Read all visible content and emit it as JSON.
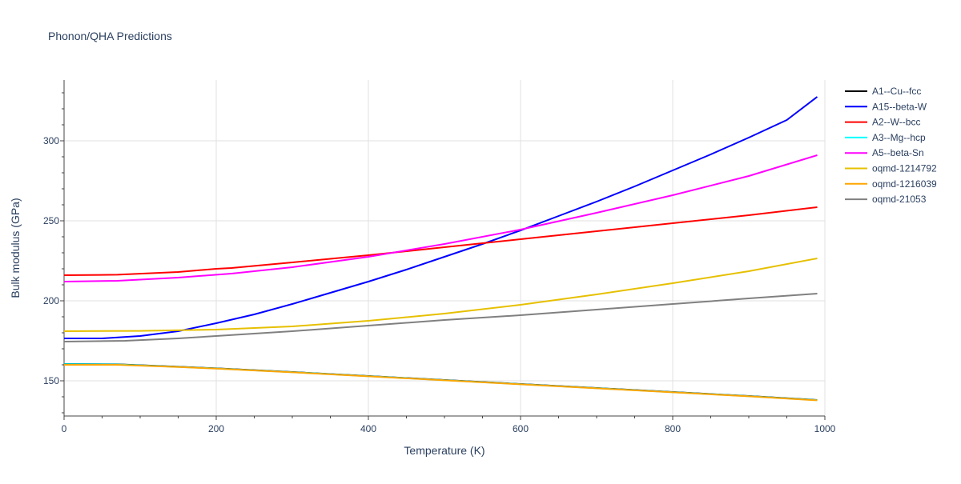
{
  "chart_data": {
    "type": "line",
    "title": "Phonon/QHA Predictions",
    "xlabel": "Temperature (K)",
    "ylabel": "Bulk modulus (GPa)",
    "xlim": [
      0,
      1000
    ],
    "ylim": [
      128,
      338
    ],
    "x_ticks": [
      0,
      200,
      400,
      600,
      800,
      1000
    ],
    "y_ticks": [
      150,
      200,
      250,
      300
    ],
    "grid": true,
    "legend_position": "top-right",
    "series": [
      {
        "name": "A1--Cu--fcc",
        "color": "#000000",
        "points": [
          [
            0,
            160.5
          ],
          [
            70,
            160.3
          ],
          [
            150,
            158.8
          ],
          [
            200,
            157.8
          ],
          [
            300,
            155.5
          ],
          [
            400,
            153
          ],
          [
            500,
            150.5
          ],
          [
            600,
            148
          ],
          [
            700,
            145.5
          ],
          [
            800,
            143
          ],
          [
            900,
            140.5
          ],
          [
            990,
            138
          ]
        ]
      },
      {
        "name": "A15--beta-W",
        "color": "#0000ff",
        "points": [
          [
            0,
            176.5
          ],
          [
            50,
            176.5
          ],
          [
            100,
            178
          ],
          [
            150,
            181
          ],
          [
            200,
            186
          ],
          [
            250,
            191.5
          ],
          [
            300,
            198
          ],
          [
            350,
            205
          ],
          [
            400,
            212
          ],
          [
            450,
            219.5
          ],
          [
            500,
            227.5
          ],
          [
            550,
            235.5
          ],
          [
            600,
            244
          ],
          [
            650,
            253
          ],
          [
            700,
            262
          ],
          [
            750,
            271.5
          ],
          [
            800,
            281.5
          ],
          [
            850,
            291.5
          ],
          [
            900,
            302
          ],
          [
            950,
            313
          ],
          [
            990,
            327.5
          ]
        ]
      },
      {
        "name": "A2--W--bcc",
        "color": "#ff0000",
        "points": [
          [
            0,
            216
          ],
          [
            70,
            216.3
          ],
          [
            150,
            218
          ],
          [
            200,
            220
          ],
          [
            220,
            220.5
          ],
          [
            300,
            224
          ],
          [
            400,
            228.5
          ],
          [
            500,
            233.5
          ],
          [
            600,
            238.5
          ],
          [
            700,
            243.5
          ],
          [
            800,
            248.5
          ],
          [
            900,
            253.5
          ],
          [
            990,
            258.5
          ]
        ]
      },
      {
        "name": "A3--Mg--hcp",
        "color": "#00ffff",
        "points": [
          [
            0,
            160.4
          ],
          [
            70,
            160.2
          ],
          [
            150,
            158.7
          ],
          [
            200,
            157.7
          ],
          [
            300,
            155.4
          ],
          [
            400,
            152.9
          ],
          [
            500,
            150.4
          ],
          [
            600,
            147.9
          ],
          [
            700,
            145.4
          ],
          [
            800,
            142.9
          ],
          [
            900,
            140.4
          ],
          [
            990,
            137.9
          ]
        ]
      },
      {
        "name": "A5--beta-Sn",
        "color": "#ff00ff",
        "points": [
          [
            0,
            212
          ],
          [
            70,
            212.5
          ],
          [
            150,
            214.5
          ],
          [
            220,
            217
          ],
          [
            300,
            221
          ],
          [
            400,
            227.5
          ],
          [
            500,
            235.5
          ],
          [
            600,
            244.5
          ],
          [
            700,
            255
          ],
          [
            800,
            266
          ],
          [
            900,
            278
          ],
          [
            990,
            291
          ]
        ]
      },
      {
        "name": "oqmd-1214792",
        "color": "#e6c000",
        "points": [
          [
            0,
            181
          ],
          [
            100,
            181.2
          ],
          [
            200,
            182
          ],
          [
            300,
            184
          ],
          [
            400,
            187.5
          ],
          [
            500,
            192
          ],
          [
            600,
            197.5
          ],
          [
            700,
            204
          ],
          [
            800,
            211
          ],
          [
            900,
            218.5
          ],
          [
            990,
            226.5
          ]
        ]
      },
      {
        "name": "oqmd-1216039",
        "color": "#ffa500",
        "points": [
          [
            0,
            160
          ],
          [
            70,
            160
          ],
          [
            150,
            158.6
          ],
          [
            200,
            157.6
          ],
          [
            300,
            155.3
          ],
          [
            400,
            152.8
          ],
          [
            500,
            150.3
          ],
          [
            600,
            147.8
          ],
          [
            700,
            145.3
          ],
          [
            800,
            142.8
          ],
          [
            900,
            140.3
          ],
          [
            990,
            137.8
          ]
        ]
      },
      {
        "name": "oqmd-21053",
        "color": "#808080",
        "points": [
          [
            0,
            174.5
          ],
          [
            80,
            175
          ],
          [
            150,
            176.5
          ],
          [
            200,
            178
          ],
          [
            300,
            181
          ],
          [
            400,
            184.5
          ],
          [
            500,
            188
          ],
          [
            600,
            191
          ],
          [
            700,
            194.5
          ],
          [
            800,
            198
          ],
          [
            900,
            201.5
          ],
          [
            990,
            204.5
          ]
        ]
      }
    ]
  }
}
